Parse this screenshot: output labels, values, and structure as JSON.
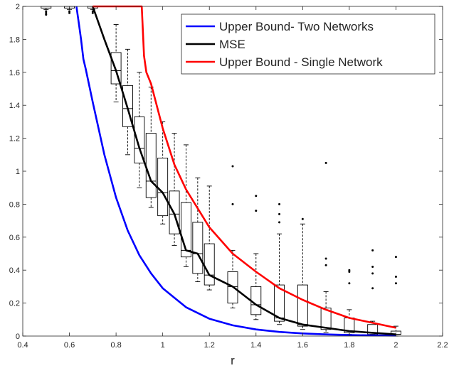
{
  "chart_data": {
    "type": "line",
    "xlabel": "r",
    "ylabel": "",
    "xlim": [
      0.4,
      2.2
    ],
    "ylim": [
      0,
      2
    ],
    "xticks": [
      0.4,
      0.6,
      0.8,
      1,
      1.2,
      1.4,
      1.6,
      1.8,
      2,
      2.2
    ],
    "xtick_labels": [
      "0.4",
      "0.6",
      "0.8",
      "1",
      "1.2",
      "1.4",
      "1.6",
      "1.8",
      "2",
      "2.2"
    ],
    "yticks": [
      0,
      0.2,
      0.4,
      0.6,
      0.8,
      1,
      1.2,
      1.4,
      1.6,
      1.8,
      2
    ],
    "ytick_labels": [
      "0",
      "0.2",
      "0.4",
      "0.6",
      "0.8",
      "1",
      "1.2",
      "1.4",
      "1.6",
      "1.8",
      "2"
    ],
    "grid": false,
    "legend_position": "top-right",
    "series": [
      {
        "name": "Upper Bound- Two Networks",
        "color": "#0000ff",
        "x": [
          0.63,
          0.64,
          0.65,
          0.66,
          0.67,
          0.7,
          0.75,
          0.8,
          0.85,
          0.9,
          0.95,
          1.0,
          1.1,
          1.2,
          1.3,
          1.4,
          1.5,
          1.6,
          1.7,
          1.8,
          1.9,
          2.0
        ],
        "y": [
          2.0,
          1.9,
          1.8,
          1.68,
          1.62,
          1.42,
          1.1,
          0.84,
          0.64,
          0.49,
          0.38,
          0.29,
          0.175,
          0.105,
          0.065,
          0.04,
          0.025,
          0.016,
          0.01,
          0.006,
          0.004,
          0.003
        ]
      },
      {
        "name": "MSE",
        "color": "#000000",
        "x": [
          0.7,
          0.75,
          0.8,
          0.85,
          0.9,
          0.95,
          1.0,
          1.05,
          1.1,
          1.15,
          1.2,
          1.3,
          1.4,
          1.5,
          1.6,
          1.7,
          1.8,
          1.9,
          2.0
        ],
        "y": [
          2.0,
          1.8,
          1.61,
          1.38,
          1.14,
          0.94,
          0.87,
          0.74,
          0.52,
          0.5,
          0.37,
          0.3,
          0.19,
          0.11,
          0.07,
          0.05,
          0.03,
          0.02,
          0.01
        ]
      },
      {
        "name": "Upper Bound - Single Network",
        "color": "#ff0000",
        "x": [
          0.7,
          0.91,
          0.92,
          0.93,
          0.95,
          1.0,
          1.05,
          1.1,
          1.2,
          1.3,
          1.4,
          1.5,
          1.6,
          1.7,
          1.8,
          1.9,
          2.0
        ],
        "y": [
          2.0,
          2.0,
          1.7,
          1.6,
          1.53,
          1.26,
          1.04,
          0.89,
          0.66,
          0.5,
          0.39,
          0.29,
          0.22,
          0.16,
          0.11,
          0.08,
          0.05
        ]
      }
    ],
    "boxes": [
      {
        "x": 0.5,
        "q1": 1.99,
        "median": 2.0,
        "q3": 2.0,
        "whisker_low": 1.98,
        "whisker_high": 2.0,
        "outliers": [
          1.97,
          1.96,
          1.95
        ]
      },
      {
        "x": 0.6,
        "q1": 1.99,
        "median": 2.0,
        "q3": 2.0,
        "whisker_low": 1.98,
        "whisker_high": 2.0,
        "outliers": [
          1.97,
          1.96
        ]
      },
      {
        "x": 0.7,
        "q1": 1.99,
        "median": 2.0,
        "q3": 2.0,
        "whisker_low": 1.98,
        "whisker_high": 2.0,
        "outliers": [
          1.97,
          1.96
        ]
      },
      {
        "x": 0.8,
        "q1": 1.53,
        "median": 1.61,
        "q3": 1.72,
        "whisker_low": 1.42,
        "whisker_high": 1.89,
        "outliers": []
      },
      {
        "x": 0.85,
        "q1": 1.27,
        "median": 1.38,
        "q3": 1.52,
        "whisker_low": 1.1,
        "whisker_high": 1.74,
        "outliers": []
      },
      {
        "x": 0.9,
        "q1": 1.05,
        "median": 1.14,
        "q3": 1.33,
        "whisker_low": 0.9,
        "whisker_high": 1.6,
        "outliers": []
      },
      {
        "x": 0.95,
        "q1": 0.84,
        "median": 0.94,
        "q3": 1.23,
        "whisker_low": 0.78,
        "whisker_high": 1.51,
        "outliers": []
      },
      {
        "x": 1.0,
        "q1": 0.73,
        "median": 0.87,
        "q3": 1.08,
        "whisker_low": 0.68,
        "whisker_high": 1.3,
        "outliers": []
      },
      {
        "x": 1.05,
        "q1": 0.62,
        "median": 0.74,
        "q3": 0.88,
        "whisker_low": 0.55,
        "whisker_high": 1.23,
        "outliers": []
      },
      {
        "x": 1.1,
        "q1": 0.48,
        "median": 0.52,
        "q3": 0.81,
        "whisker_low": 0.42,
        "whisker_high": 1.16,
        "outliers": []
      },
      {
        "x": 1.15,
        "q1": 0.38,
        "median": 0.5,
        "q3": 0.69,
        "whisker_low": 0.33,
        "whisker_high": 0.96,
        "outliers": []
      },
      {
        "x": 1.2,
        "q1": 0.31,
        "median": 0.37,
        "q3": 0.56,
        "whisker_low": 0.28,
        "whisker_high": 0.91,
        "outliers": []
      },
      {
        "x": 1.3,
        "q1": 0.2,
        "median": 0.3,
        "q3": 0.39,
        "whisker_low": 0.17,
        "whisker_high": 0.52,
        "outliers": [
          1.03,
          0.8
        ]
      },
      {
        "x": 1.4,
        "q1": 0.13,
        "median": 0.19,
        "q3": 0.3,
        "whisker_low": 0.1,
        "whisker_high": 0.5,
        "outliers": [
          0.85,
          0.76
        ]
      },
      {
        "x": 1.5,
        "q1": 0.09,
        "median": 0.11,
        "q3": 0.31,
        "whisker_low": 0.07,
        "whisker_high": 0.62,
        "outliers": [
          0.8,
          0.74,
          0.69
        ]
      },
      {
        "x": 1.6,
        "q1": 0.06,
        "median": 0.07,
        "q3": 0.31,
        "whisker_low": 0.04,
        "whisker_high": 0.68,
        "outliers": [
          0.71
        ]
      },
      {
        "x": 1.7,
        "q1": 0.04,
        "median": 0.05,
        "q3": 0.17,
        "whisker_low": 0.02,
        "whisker_high": 0.27,
        "outliers": [
          1.05,
          0.47,
          0.43
        ]
      },
      {
        "x": 1.8,
        "q1": 0.02,
        "median": 0.03,
        "q3": 0.11,
        "whisker_low": 0.01,
        "whisker_high": 0.16,
        "outliers": [
          0.4,
          0.39,
          0.32
        ]
      },
      {
        "x": 1.9,
        "q1": 0.01,
        "median": 0.02,
        "q3": 0.07,
        "whisker_low": 0.01,
        "whisker_high": 0.09,
        "outliers": [
          0.52,
          0.42,
          0.38,
          0.29
        ]
      },
      {
        "x": 2.0,
        "q1": 0.01,
        "median": 0.01,
        "q3": 0.03,
        "whisker_low": 0.0,
        "whisker_high": 0.06,
        "outliers": [
          0.48,
          0.36,
          0.32
        ]
      }
    ]
  }
}
